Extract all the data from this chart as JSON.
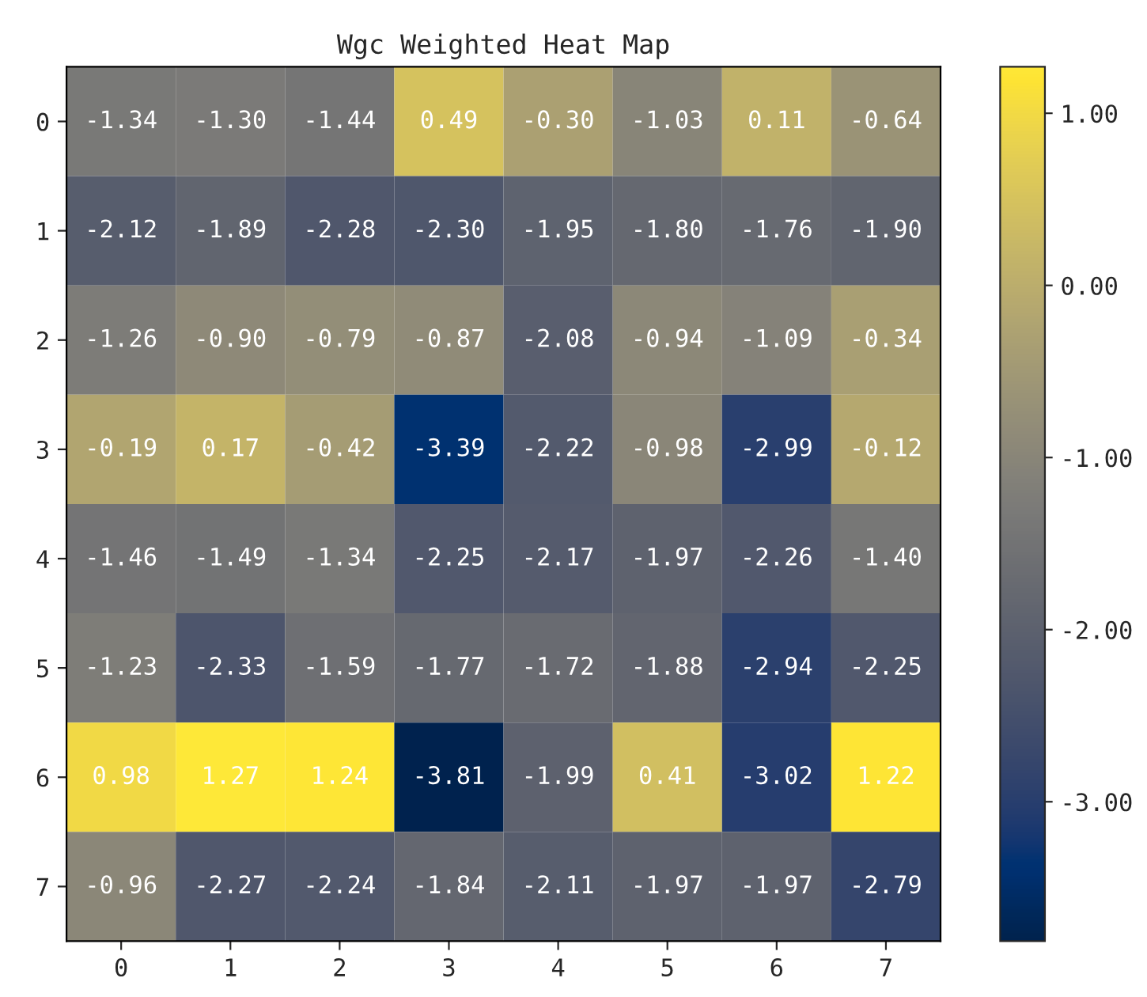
{
  "chart_data": {
    "type": "heatmap",
    "title": "Wgc Weighted Heat Map",
    "categories": [
      "0",
      "1",
      "2",
      "3",
      "4",
      "5",
      "6",
      "7"
    ],
    "y_categories": [
      "0",
      "1",
      "2",
      "3",
      "4",
      "5",
      "6",
      "7"
    ],
    "cells": [
      [
        -1.34,
        -1.3,
        -1.44,
        0.49,
        -0.3,
        -1.03,
        0.11,
        -0.64
      ],
      [
        -2.12,
        -1.89,
        -2.28,
        -2.3,
        -1.95,
        -1.8,
        -1.76,
        -1.9
      ],
      [
        -1.26,
        -0.9,
        -0.79,
        -0.87,
        -2.08,
        -0.94,
        -1.09,
        -0.34
      ],
      [
        -0.19,
        0.17,
        -0.42,
        -3.39,
        -2.22,
        -0.98,
        -2.99,
        -0.12
      ],
      [
        -1.46,
        -1.49,
        -1.34,
        -2.25,
        -2.17,
        -1.97,
        -2.26,
        -1.4
      ],
      [
        -1.23,
        -2.33,
        -1.59,
        -1.77,
        -1.72,
        -1.88,
        -2.94,
        -2.25
      ],
      [
        0.98,
        1.27,
        1.24,
        -3.81,
        -1.99,
        0.41,
        -3.02,
        1.22
      ],
      [
        -0.96,
        -2.27,
        -2.24,
        -1.84,
        -2.11,
        -1.97,
        -1.97,
        -2.79
      ]
    ],
    "cell_labels": [
      [
        "-1.34",
        "-1.30",
        "-1.44",
        "0.49",
        "-0.30",
        "-1.03",
        "0.11",
        "-0.64"
      ],
      [
        "-2.12",
        "-1.89",
        "-2.28",
        "-2.30",
        "-1.95",
        "-1.80",
        "-1.76",
        "-1.90"
      ],
      [
        "-1.26",
        "-0.90",
        "-0.79",
        "-0.87",
        "-2.08",
        "-0.94",
        "-1.09",
        "-0.34"
      ],
      [
        "-0.19",
        "0.17",
        "-0.42",
        "-3.39",
        "-2.22",
        "-0.98",
        "-2.99",
        "-0.12"
      ],
      [
        "-1.46",
        "-1.49",
        "-1.34",
        "-2.25",
        "-2.17",
        "-1.97",
        "-2.26",
        "-1.40"
      ],
      [
        "-1.23",
        "-2.33",
        "-1.59",
        "-1.77",
        "-1.72",
        "-1.88",
        "-2.94",
        "-2.25"
      ],
      [
        "0.98",
        "1.27",
        "1.24",
        "-3.81",
        "-1.99",
        "0.41",
        "-3.02",
        "1.22"
      ],
      [
        "-0.96",
        "-2.27",
        "-2.24",
        "-1.84",
        "-2.11",
        "-1.97",
        "-1.97",
        "-2.79"
      ]
    ],
    "clim": [
      -3.81,
      1.27
    ],
    "cticks": [
      {
        "value": 1,
        "label": "1.00"
      },
      {
        "value": 0,
        "label": "0.00"
      },
      {
        "value": -1,
        "label": "-1.00"
      },
      {
        "value": -2,
        "label": "-2.00"
      },
      {
        "value": -3,
        "label": "-3.00"
      }
    ],
    "data_labels": true
  }
}
